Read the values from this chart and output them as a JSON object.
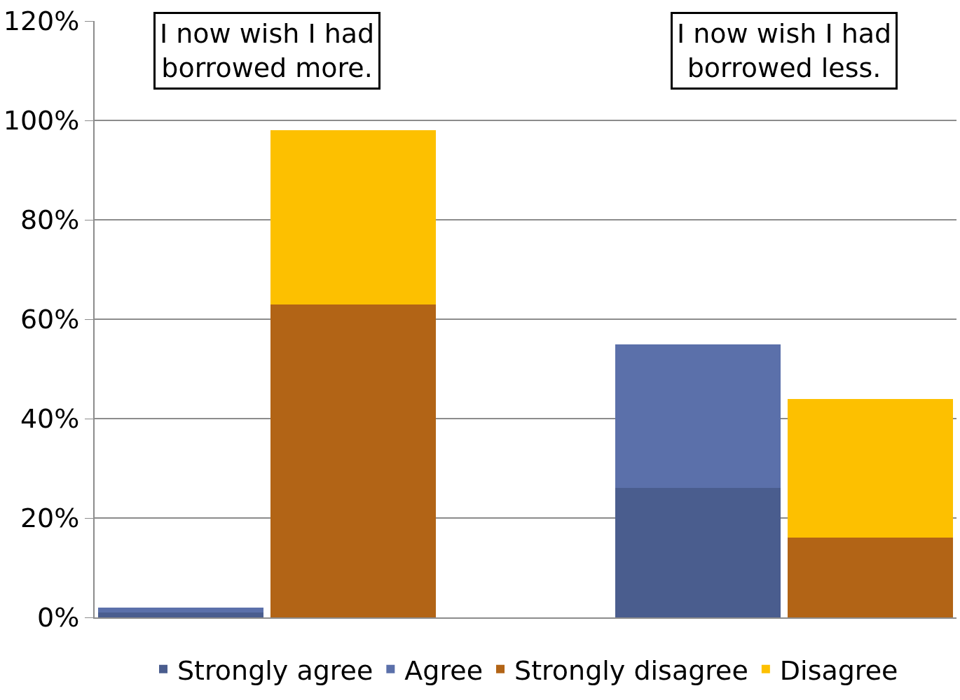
{
  "chart_data": {
    "type": "bar",
    "stacked": true,
    "categories": [
      null,
      null,
      null,
      null,
      null
    ],
    "series": [
      {
        "name": "Strongly agree",
        "color": "#4a5d8e",
        "values": [
          1,
          null,
          null,
          26,
          null
        ]
      },
      {
        "name": "Agree",
        "color": "#5b70aa",
        "values": [
          1,
          null,
          null,
          29,
          null
        ]
      },
      {
        "name": "Strongly disagree",
        "color": "#b26416",
        "values": [
          null,
          63,
          null,
          null,
          16
        ]
      },
      {
        "name": "Disagree",
        "color": "#fdc000",
        "values": [
          null,
          35,
          null,
          null,
          28
        ]
      }
    ],
    "ylim": [
      0,
      120
    ],
    "yticks": [
      {
        "value": 0,
        "label": "0%"
      },
      {
        "value": 20,
        "label": "20%"
      },
      {
        "value": 40,
        "label": "40%"
      },
      {
        "value": 60,
        "label": "60%"
      },
      {
        "value": 80,
        "label": "80%"
      },
      {
        "value": 100,
        "label": "100%"
      },
      {
        "value": 120,
        "label": "120%"
      }
    ],
    "grid": "y",
    "legend": "bottom",
    "annotations": [
      "I now wish I had\nborrowed more.",
      "I now wish I had\nborrowed less."
    ]
  }
}
